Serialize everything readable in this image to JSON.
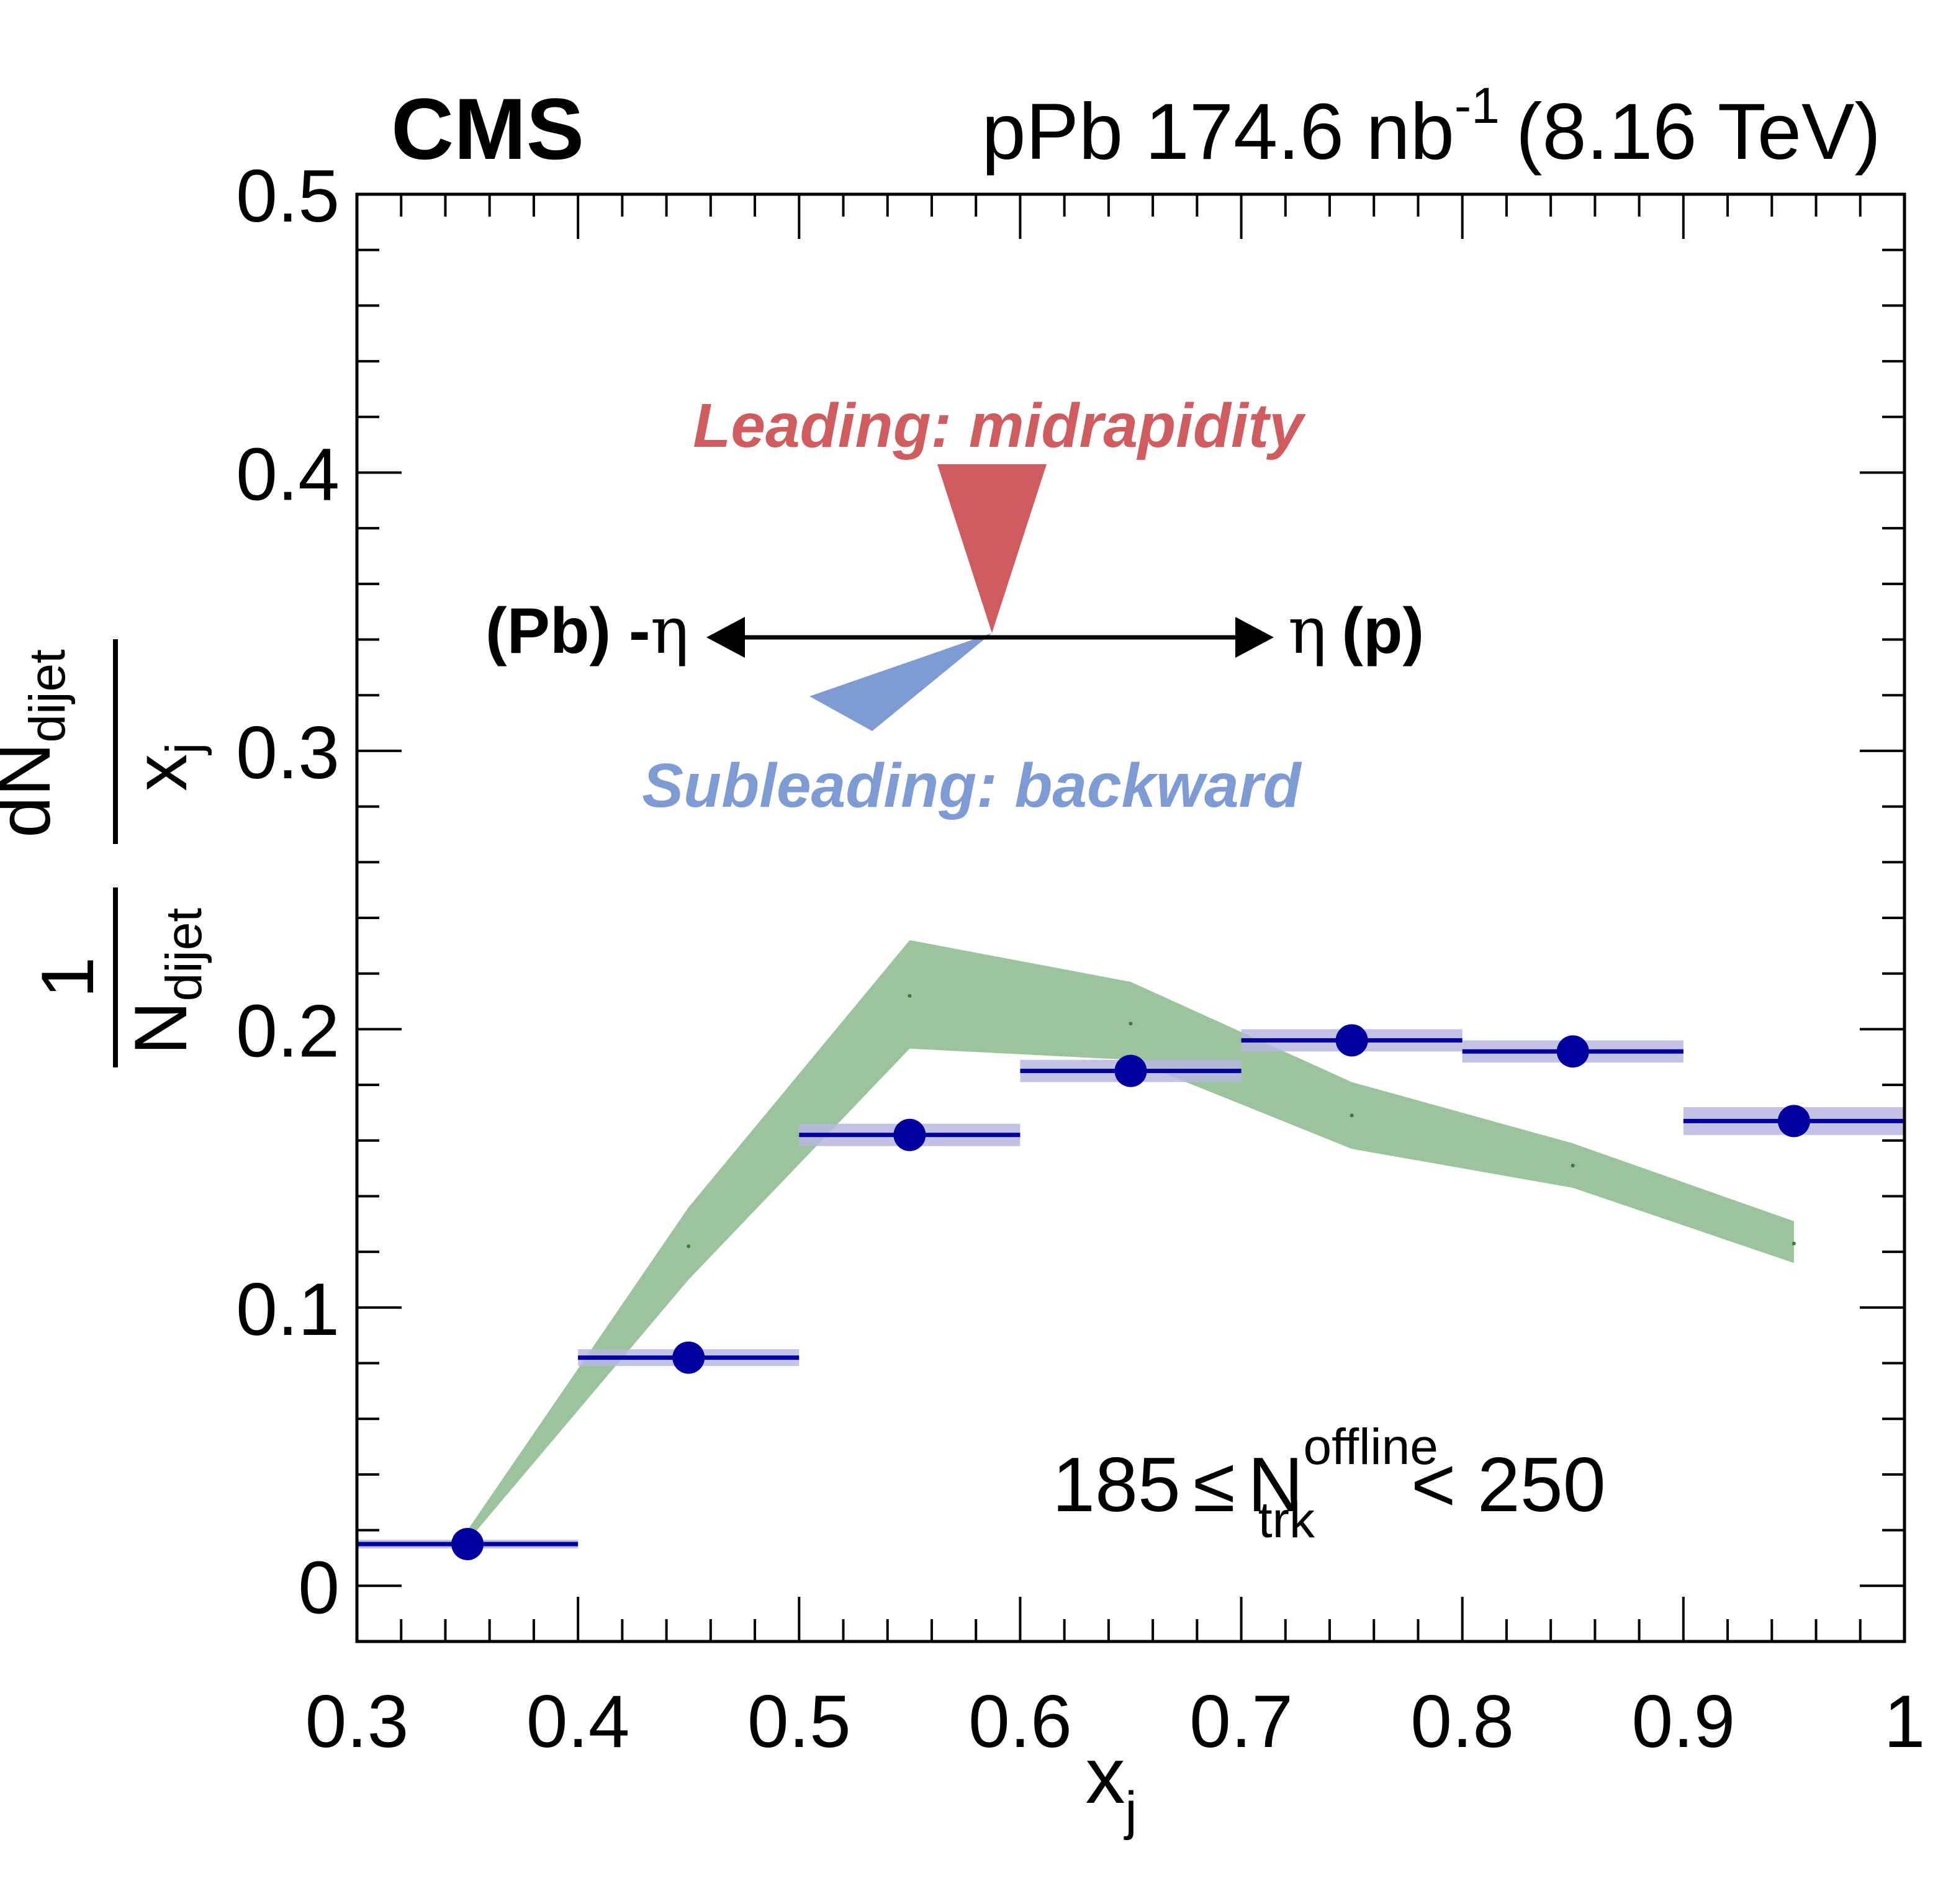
{
  "header": {
    "experiment": "CMS",
    "lumi_prefix": "pPb 174.6 nb",
    "lumi_exponent": "-1",
    "energy": "(8.16 TeV)"
  },
  "axes": {
    "x_label": "x",
    "x_label_sub": "j",
    "y_label": {
      "num_1": "1",
      "den_N": "N",
      "den_sub": "dijet",
      "num_dN": "dN",
      "num_sub": "dijet",
      "den_x": "x",
      "den_x_sub": "j"
    }
  },
  "annotations": {
    "leading": "Leading: midrapidity",
    "subleading": "Subleading: backward",
    "pb_label": "(Pb) -",
    "p_label": "(p)",
    "eta": "η",
    "selection": {
      "low": "185",
      "leq": "≤",
      "N": "N",
      "sup": "offline",
      "sub": "trk",
      "rest": "< 250"
    }
  },
  "colors": {
    "data": "#00009e",
    "data_syst": "#b7b9df",
    "band": "#9cc49c",
    "band_line": "#3a7a3a",
    "leading": "#cf5c5f",
    "subleading": "#7f9bd3",
    "axis": "#000000"
  },
  "chart_data": {
    "type": "scatter",
    "xlim": [
      0.3,
      1.0
    ],
    "ylim": [
      -0.02,
      0.5
    ],
    "x_ticks": [
      0.3,
      0.4,
      0.5,
      0.6,
      0.7,
      0.8,
      0.9,
      1.0
    ],
    "x_tick_labels": [
      "0.3",
      "0.4",
      "0.5",
      "0.6",
      "0.7",
      "0.8",
      "0.9",
      "1"
    ],
    "y_ticks": [
      0,
      0.1,
      0.2,
      0.3,
      0.4,
      0.5
    ],
    "y_tick_labels": [
      "0",
      "0.1",
      "0.2",
      "0.3",
      "0.4",
      "0.5"
    ],
    "grid": false,
    "series": [
      {
        "bins": [
          [
            0.3,
            0.4
          ],
          [
            0.4,
            0.5
          ],
          [
            0.5,
            0.6
          ],
          [
            0.6,
            0.7
          ],
          [
            0.7,
            0.8
          ],
          [
            0.8,
            0.9
          ],
          [
            0.9,
            1.0
          ]
        ],
        "x": [
          0.35,
          0.45,
          0.55,
          0.65,
          0.75,
          0.85,
          0.95
        ],
        "y": [
          0.015,
          0.082,
          0.162,
          0.185,
          0.196,
          0.192,
          0.167
        ],
        "syst": [
          0.001,
          0.003,
          0.004,
          0.004,
          0.004,
          0.004,
          0.005
        ]
      },
      {
        "x": [
          0.35,
          0.45,
          0.55,
          0.65,
          0.75,
          0.85,
          0.95
        ],
        "y_low": [
          0.016,
          0.11,
          0.193,
          0.189,
          0.157,
          0.143,
          0.116
        ],
        "y_high": [
          0.02,
          0.136,
          0.232,
          0.217,
          0.181,
          0.159,
          0.131
        ],
        "y_center": [
          0.018,
          0.122,
          0.212,
          0.202,
          0.169,
          0.151,
          0.123
        ]
      }
    ]
  }
}
